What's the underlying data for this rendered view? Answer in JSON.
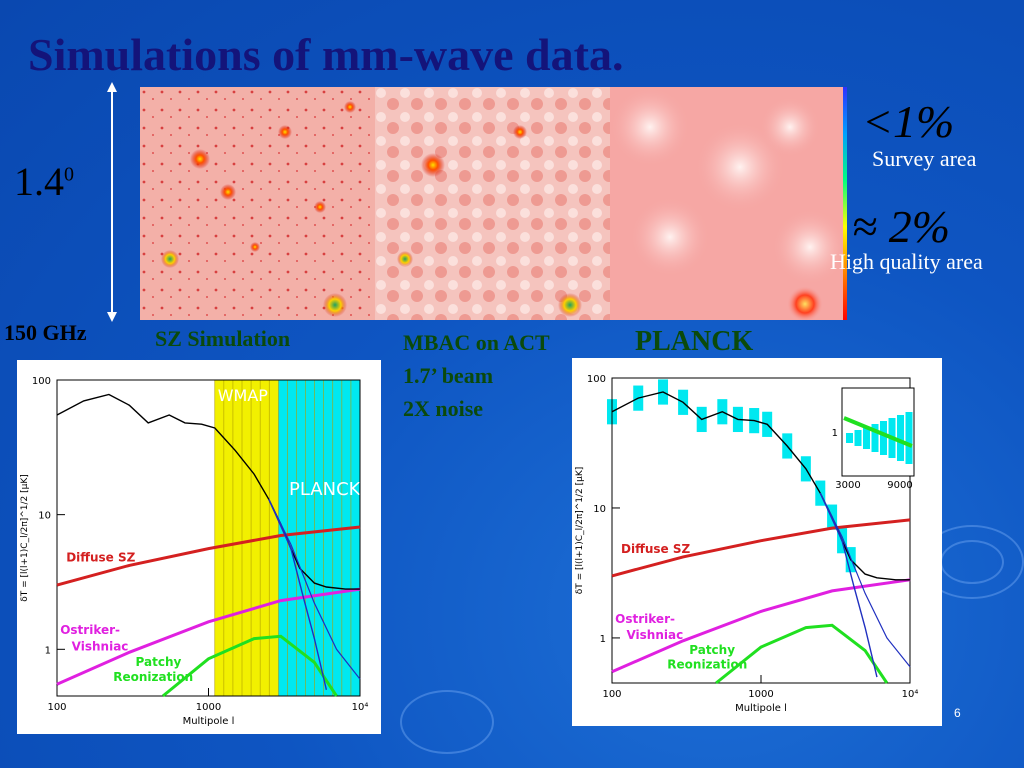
{
  "title": "Simulations of mm-wave data.",
  "angle_label": "1.4",
  "angle_sup": "0",
  "freq_label": "150 GHz",
  "map_labels": {
    "sz": "SZ Simulation",
    "mbac_line1": "MBAC on ACT",
    "mbac_line2": "1.7’ beam",
    "mbac_line3": "2X noise",
    "planck": "PLANCK"
  },
  "stats": {
    "survey_value": "<1%",
    "survey_label": "Survey area",
    "hq_value": "≈ 2%",
    "hq_label": "High quality area"
  },
  "page_number": "6",
  "colors": {
    "diffuse_sz": "#d42020",
    "ostriker": "#e020e0",
    "patchy": "#20e020",
    "cmb": "#000000",
    "wmap_band": "#f2f000",
    "planck_band": "#00e8f0",
    "title": "#14147a"
  },
  "chart_data": [
    {
      "type": "line",
      "xlabel": "Multipole l",
      "ylabel": "δT = [l(l+1)C_l/2π]^1/2 [μK]",
      "x_scale": "log",
      "y_scale": "log",
      "xlim": [
        100,
        10000
      ],
      "ylim": [
        0.45,
        100
      ],
      "x_ticks": [
        "100",
        "1000",
        "10⁴"
      ],
      "y_ticks": [
        "1",
        "10",
        "100"
      ],
      "band_labels": [
        "WMAP",
        "PLANCK"
      ],
      "series": [
        {
          "name": "Diffuse SZ",
          "x": [
            100,
            300,
            1000,
            3000,
            10000
          ],
          "y": [
            3.0,
            4.2,
            5.6,
            7.0,
            8.1
          ]
        },
        {
          "name": "Ostriker-Vishniac",
          "x": [
            100,
            300,
            1000,
            3000,
            10000
          ],
          "y": [
            0.55,
            0.95,
            1.6,
            2.3,
            2.8
          ]
        },
        {
          "name": "Patchy Reonization",
          "x": [
            500,
            1000,
            2000,
            3000,
            5000,
            7000
          ],
          "y": [
            0.45,
            0.85,
            1.2,
            1.25,
            0.8,
            0.45
          ]
        },
        {
          "name": "",
          "x": [
            100,
            150,
            220,
            300,
            400,
            550,
            700,
            900,
            1100,
            1500,
            2000,
            2500,
            3000,
            3500,
            4000,
            5000,
            6000,
            8000,
            10000
          ],
          "y": [
            55,
            70,
            78,
            65,
            48,
            55,
            48,
            47,
            44,
            30,
            20,
            13,
            8.5,
            5.6,
            4.0,
            3.1,
            2.9,
            2.8,
            2.8
          ]
        }
      ]
    },
    {
      "type": "line",
      "xlabel": "Multipole l",
      "ylabel": "δT = [l(l+1)C_l/2π]^1/2 [μK]",
      "x_scale": "log",
      "y_scale": "log",
      "xlim": [
        100,
        10000
      ],
      "ylim": [
        0.45,
        100
      ],
      "x_ticks": [
        "100",
        "1000",
        "10⁴"
      ],
      "y_ticks": [
        "1",
        "10",
        "100"
      ],
      "inset": {
        "x_ticks": [
          "3000",
          "9000"
        ],
        "y_ticks": [
          "1"
        ]
      },
      "series": [
        {
          "name": "Diffuse SZ",
          "x": [
            100,
            300,
            1000,
            3000,
            10000
          ],
          "y": [
            3.0,
            4.2,
            5.6,
            7.0,
            8.1
          ]
        },
        {
          "name": "Ostriker-Vishniac",
          "x": [
            100,
            300,
            1000,
            3000,
            10000
          ],
          "y": [
            0.55,
            0.95,
            1.6,
            2.3,
            2.8
          ]
        },
        {
          "name": "Patchy Reonization",
          "x": [
            500,
            1000,
            2000,
            3000,
            5000,
            7000
          ],
          "y": [
            0.45,
            0.85,
            1.2,
            1.25,
            0.8,
            0.45
          ]
        },
        {
          "name": "",
          "x": [
            100,
            150,
            220,
            300,
            400,
            550,
            700,
            900,
            1100,
            1500,
            2000,
            2500,
            3000,
            3500,
            4000,
            5000,
            6000,
            8000,
            10000
          ],
          "y": [
            55,
            70,
            78,
            65,
            48,
            55,
            48,
            47,
            44,
            30,
            20,
            13,
            8.5,
            5.6,
            4.0,
            3.1,
            2.9,
            2.8,
            2.8
          ]
        }
      ]
    }
  ]
}
